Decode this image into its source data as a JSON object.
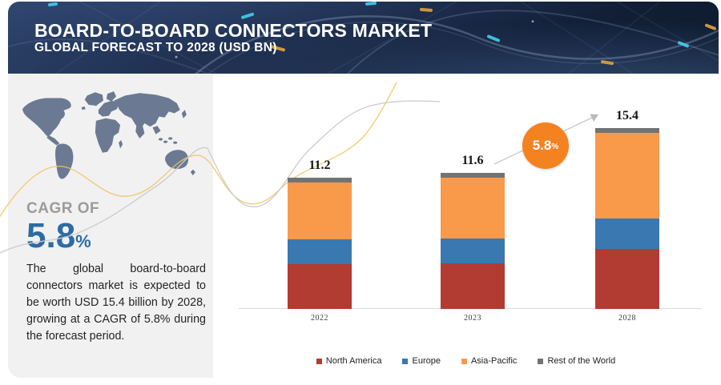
{
  "header": {
    "title": "BOARD-TO-BOARD CONNECTORS MARKET",
    "subtitle": "GLOBAL FORECAST TO 2028 (USD BN)"
  },
  "sidebar": {
    "cagr_label": "CAGR OF",
    "cagr_value": "5.8",
    "cagr_percent_sign": "%",
    "description": "The global board-to-board connectors market is expected to be worth USD 15.4 billion by 2028, growing at a CAGR of 5.8% during the forecast period."
  },
  "badge": {
    "value": "5.8",
    "percent_sign": "%"
  },
  "chart_data": {
    "type": "bar",
    "stacked": true,
    "title": "Board-to-Board Connectors Market, Global Forecast to 2028 (USD BN)",
    "categories": [
      "2022",
      "2023",
      "2028"
    ],
    "series": [
      {
        "name": "North America",
        "color": "#b23b32",
        "values": [
          3.8,
          3.9,
          5.1
        ]
      },
      {
        "name": "Europe",
        "color": "#3a78b2",
        "values": [
          2.1,
          2.1,
          2.6
        ]
      },
      {
        "name": "Asia-Pacific",
        "color": "#f9994a",
        "values": [
          4.9,
          5.2,
          7.3
        ]
      },
      {
        "name": "Rest of the World",
        "color": "#737373",
        "values": [
          0.4,
          0.4,
          0.4
        ]
      }
    ],
    "totals": [
      11.2,
      11.6,
      15.4
    ],
    "cagr_annotation": "5.8%",
    "xlabel": "",
    "ylabel": "USD BN",
    "ylim": [
      0,
      16
    ],
    "grid": false,
    "legend_position": "bottom"
  },
  "colors": {
    "header_navy": "#16243f",
    "header_navy_light": "#2c4168",
    "panel_gray": "#f1f1f2",
    "map_blue_gray": "#6b7a92",
    "cagr_blue": "#2d6ca3",
    "cagr_label_gray": "#9b9b9b",
    "text_dark": "#242424",
    "badge_orange": "#f58220",
    "curve_yellow": "#f2c45e",
    "curve_gray": "#cccccc",
    "axis_gray": "#d9d9d9"
  }
}
